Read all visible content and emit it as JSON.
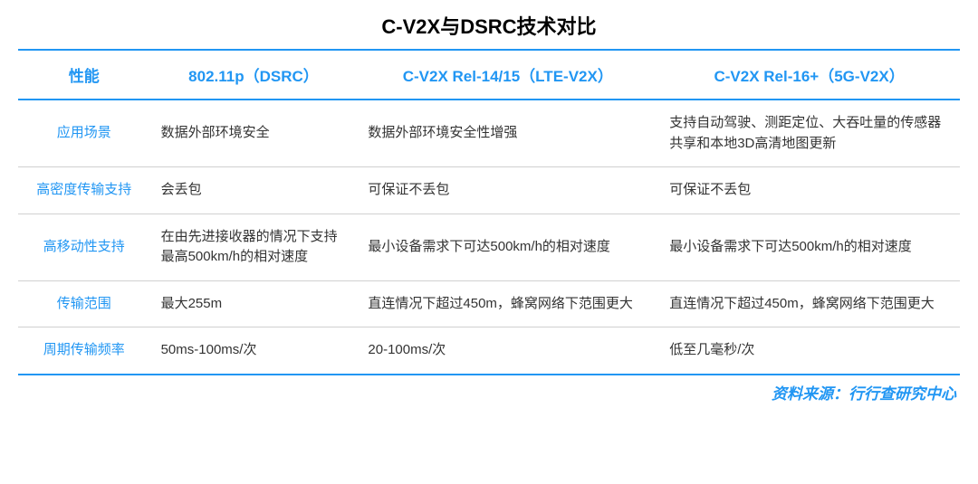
{
  "title": "C-V2X与DSRC技术对比",
  "source": "资料来源：行行查研究中心",
  "table": {
    "type": "table",
    "columns": [
      "性能",
      "802.11p（DSRC）",
      "C-V2X Rel-14/15（LTE-V2X）",
      "C-V2X Rel-16+（5G-V2X）"
    ],
    "column_widths_pct": [
      14,
      22,
      32,
      32
    ],
    "rows": [
      {
        "label": "应用场景",
        "cells": [
          "数据外部环境安全",
          "数据外部环境安全性增强",
          "支持自动驾驶、测距定位、大吞吐量的传感器共享和本地3D高清地图更新"
        ]
      },
      {
        "label": "高密度传输支持",
        "cells": [
          "会丢包",
          "可保证不丢包",
          "可保证不丢包"
        ]
      },
      {
        "label": "高移动性支持",
        "cells": [
          "在由先进接收器的情况下支持最高500km/h的相对速度",
          "最小设备需求下可达500km/h的相对速度",
          "最小设备需求下可达500km/h的相对速度"
        ]
      },
      {
        "label": "传输范围",
        "cells": [
          "最大255m",
          "直连情况下超过450m，蜂窝网络下范围更大",
          "直连情况下超过450m，蜂窝网络下范围更大"
        ]
      },
      {
        "label": "周期传输频率",
        "cells": [
          "50ms-100ms/次",
          "20-100ms/次",
          "低至几毫秒/次"
        ]
      }
    ],
    "colors": {
      "accent": "#2196f3",
      "text": "#333333",
      "background": "#ffffff",
      "row_border": "#d0d0d0"
    },
    "fontsize": {
      "title": 22,
      "header": 17,
      "body": 15,
      "source": 17
    }
  }
}
